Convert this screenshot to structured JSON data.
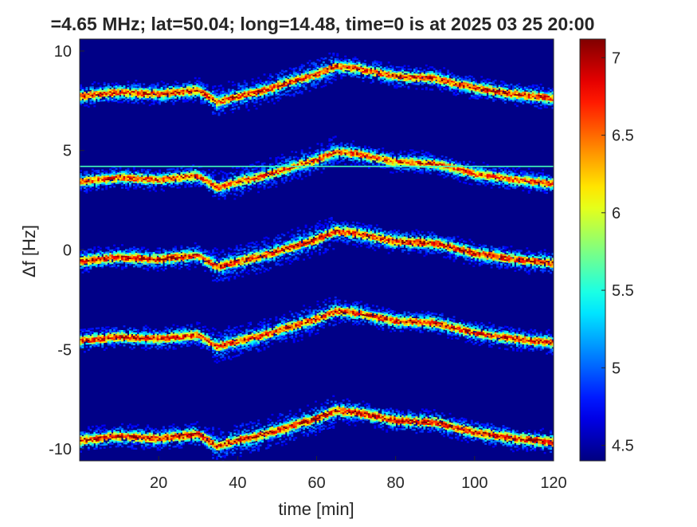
{
  "chart_data": {
    "type": "heatmap",
    "title": "=4.65 MHz;  lat=50.04; long=14.48, time=0 is at 2025 03 25 20:00",
    "xlabel": "time [min]",
    "ylabel": "Δf [Hz]",
    "xlim": [
      0,
      120
    ],
    "ylim": [
      -10.6,
      10.6
    ],
    "x_ticks": [
      20,
      40,
      60,
      80,
      100,
      120
    ],
    "y_ticks": [
      -10,
      -5,
      0,
      5,
      10
    ],
    "colorbar": {
      "clim": [
        4.4,
        7.12
      ],
      "ticks": [
        4.5,
        5,
        5.5,
        6,
        6.5,
        7
      ],
      "colormap": "jet"
    },
    "background_value": 4.42,
    "carrier_line": {
      "y": 4.2,
      "value": 5.6
    },
    "traces": [
      {
        "offset": 0,
        "peak": 6.9,
        "path": [
          [
            0,
            -0.6
          ],
          [
            10,
            -0.4
          ],
          [
            20,
            -0.5
          ],
          [
            25,
            -0.4
          ],
          [
            30,
            -0.3
          ],
          [
            35,
            -0.9
          ],
          [
            40,
            -0.6
          ],
          [
            45,
            -0.4
          ],
          [
            50,
            -0.1
          ],
          [
            55,
            0.2
          ],
          [
            60,
            0.5
          ],
          [
            65,
            0.9
          ],
          [
            70,
            0.8
          ],
          [
            75,
            0.6
          ],
          [
            80,
            0.4
          ],
          [
            90,
            0.3
          ],
          [
            100,
            -0.2
          ],
          [
            110,
            -0.5
          ],
          [
            120,
            -0.7
          ]
        ]
      },
      {
        "offset": 4.0,
        "peak": 6.7
      },
      {
        "offset": 8.3,
        "peak": 6.8
      },
      {
        "offset": -4.0,
        "peak": 6.8
      },
      {
        "offset": -9.0,
        "peak": 6.9
      }
    ]
  }
}
